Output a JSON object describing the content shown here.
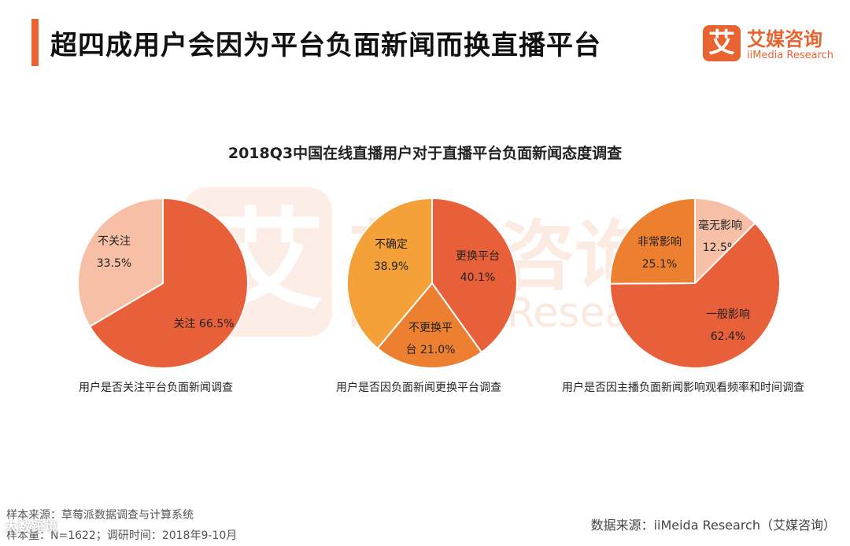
{
  "page_title": "超四成用户会因为平台负面新闻而换直播平台",
  "logo": {
    "mark": "艾",
    "cn": "艾媒咨询",
    "en": "iiMedia Research"
  },
  "watermark": {
    "mark": "艾",
    "cn": "艾媒咨询",
    "en": "iiMedia Research"
  },
  "colors": {
    "dark": "#e8603a",
    "light": "#f7c0a6",
    "mid": "#ec8030",
    "gold": "#f5a13a",
    "accent": "#e8632f"
  },
  "chart_data": [
    {
      "type": "pie",
      "title": "2018Q3中国在线直播用户对于直播平台负面新闻态度调查",
      "caption": "用户是否关注平台负面新闻调查",
      "slices": [
        {
          "label": "关注",
          "value": 66.5,
          "display": "关注 66.5%",
          "color": "#e8603a"
        },
        {
          "label": "不关注",
          "value": 33.5,
          "display": "33.5%",
          "color": "#f7c0a6"
        }
      ]
    },
    {
      "type": "pie",
      "caption": "用户是否因负面新闻更换平台调查",
      "slices": [
        {
          "label": "更换平台",
          "value": 40.1,
          "display": "40.1%",
          "color": "#e8603a"
        },
        {
          "label": "不更换平",
          "label2": "台",
          "value": 21.0,
          "display": "21.0%",
          "color": "#ec8030"
        },
        {
          "label": "不确定",
          "value": 38.9,
          "display": "38.9%",
          "color": "#f5a13a"
        }
      ]
    },
    {
      "type": "pie",
      "caption": "用户是否因主播负面新闻影响观看频率和时间调查",
      "slices": [
        {
          "label": "毫无影响",
          "value": 12.5,
          "display": "12.5%",
          "color": "#f7c0a6"
        },
        {
          "label": "一般影响",
          "value": 62.4,
          "display": "62.4%",
          "color": "#e8603a"
        },
        {
          "label": "非常影响",
          "value": 25.1,
          "display": "25.1%",
          "color": "#ec8030"
        }
      ]
    }
  ],
  "footer": {
    "sample_source": "样本来源：草莓派数据调查与计算系统",
    "sample_size": "样本量：N=1622；调研时间：2018年9-10月",
    "data_source": "数据来源：iiMeida Research（艾媒咨询）",
    "overlay_mark": "大数跨境"
  }
}
